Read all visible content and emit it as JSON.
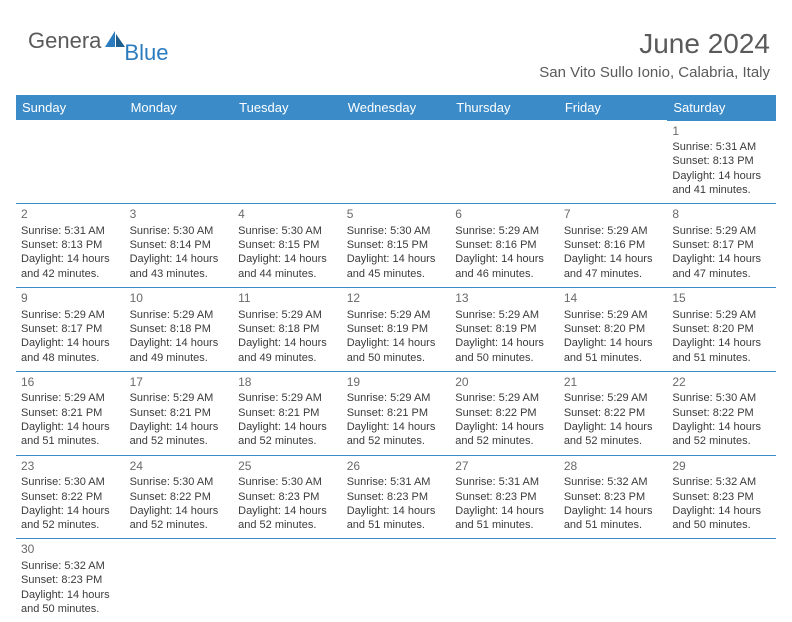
{
  "logo": {
    "general": "Genera",
    "blue": "Blue"
  },
  "title": "June 2024",
  "location": "San Vito Sullo Ionio, Calabria, Italy",
  "colors": {
    "header_bg": "#3b8bc9",
    "header_fg": "#ffffff",
    "cell_border": "#3b8bc9",
    "text": "#3b3b3b",
    "muted": "#5a5a5a",
    "logo_blue": "#2b7bbf"
  },
  "weekdays": [
    "Sunday",
    "Monday",
    "Tuesday",
    "Wednesday",
    "Thursday",
    "Friday",
    "Saturday"
  ],
  "weeks": [
    [
      null,
      null,
      null,
      null,
      null,
      null,
      {
        "n": "1",
        "sr": "Sunrise: 5:31 AM",
        "ss": "Sunset: 8:13 PM",
        "d1": "Daylight: 14 hours",
        "d2": "and 41 minutes."
      }
    ],
    [
      {
        "n": "2",
        "sr": "Sunrise: 5:31 AM",
        "ss": "Sunset: 8:13 PM",
        "d1": "Daylight: 14 hours",
        "d2": "and 42 minutes."
      },
      {
        "n": "3",
        "sr": "Sunrise: 5:30 AM",
        "ss": "Sunset: 8:14 PM",
        "d1": "Daylight: 14 hours",
        "d2": "and 43 minutes."
      },
      {
        "n": "4",
        "sr": "Sunrise: 5:30 AM",
        "ss": "Sunset: 8:15 PM",
        "d1": "Daylight: 14 hours",
        "d2": "and 44 minutes."
      },
      {
        "n": "5",
        "sr": "Sunrise: 5:30 AM",
        "ss": "Sunset: 8:15 PM",
        "d1": "Daylight: 14 hours",
        "d2": "and 45 minutes."
      },
      {
        "n": "6",
        "sr": "Sunrise: 5:29 AM",
        "ss": "Sunset: 8:16 PM",
        "d1": "Daylight: 14 hours",
        "d2": "and 46 minutes."
      },
      {
        "n": "7",
        "sr": "Sunrise: 5:29 AM",
        "ss": "Sunset: 8:16 PM",
        "d1": "Daylight: 14 hours",
        "d2": "and 47 minutes."
      },
      {
        "n": "8",
        "sr": "Sunrise: 5:29 AM",
        "ss": "Sunset: 8:17 PM",
        "d1": "Daylight: 14 hours",
        "d2": "and 47 minutes."
      }
    ],
    [
      {
        "n": "9",
        "sr": "Sunrise: 5:29 AM",
        "ss": "Sunset: 8:17 PM",
        "d1": "Daylight: 14 hours",
        "d2": "and 48 minutes."
      },
      {
        "n": "10",
        "sr": "Sunrise: 5:29 AM",
        "ss": "Sunset: 8:18 PM",
        "d1": "Daylight: 14 hours",
        "d2": "and 49 minutes."
      },
      {
        "n": "11",
        "sr": "Sunrise: 5:29 AM",
        "ss": "Sunset: 8:18 PM",
        "d1": "Daylight: 14 hours",
        "d2": "and 49 minutes."
      },
      {
        "n": "12",
        "sr": "Sunrise: 5:29 AM",
        "ss": "Sunset: 8:19 PM",
        "d1": "Daylight: 14 hours",
        "d2": "and 50 minutes."
      },
      {
        "n": "13",
        "sr": "Sunrise: 5:29 AM",
        "ss": "Sunset: 8:19 PM",
        "d1": "Daylight: 14 hours",
        "d2": "and 50 minutes."
      },
      {
        "n": "14",
        "sr": "Sunrise: 5:29 AM",
        "ss": "Sunset: 8:20 PM",
        "d1": "Daylight: 14 hours",
        "d2": "and 51 minutes."
      },
      {
        "n": "15",
        "sr": "Sunrise: 5:29 AM",
        "ss": "Sunset: 8:20 PM",
        "d1": "Daylight: 14 hours",
        "d2": "and 51 minutes."
      }
    ],
    [
      {
        "n": "16",
        "sr": "Sunrise: 5:29 AM",
        "ss": "Sunset: 8:21 PM",
        "d1": "Daylight: 14 hours",
        "d2": "and 51 minutes."
      },
      {
        "n": "17",
        "sr": "Sunrise: 5:29 AM",
        "ss": "Sunset: 8:21 PM",
        "d1": "Daylight: 14 hours",
        "d2": "and 52 minutes."
      },
      {
        "n": "18",
        "sr": "Sunrise: 5:29 AM",
        "ss": "Sunset: 8:21 PM",
        "d1": "Daylight: 14 hours",
        "d2": "and 52 minutes."
      },
      {
        "n": "19",
        "sr": "Sunrise: 5:29 AM",
        "ss": "Sunset: 8:21 PM",
        "d1": "Daylight: 14 hours",
        "d2": "and 52 minutes."
      },
      {
        "n": "20",
        "sr": "Sunrise: 5:29 AM",
        "ss": "Sunset: 8:22 PM",
        "d1": "Daylight: 14 hours",
        "d2": "and 52 minutes."
      },
      {
        "n": "21",
        "sr": "Sunrise: 5:29 AM",
        "ss": "Sunset: 8:22 PM",
        "d1": "Daylight: 14 hours",
        "d2": "and 52 minutes."
      },
      {
        "n": "22",
        "sr": "Sunrise: 5:30 AM",
        "ss": "Sunset: 8:22 PM",
        "d1": "Daylight: 14 hours",
        "d2": "and 52 minutes."
      }
    ],
    [
      {
        "n": "23",
        "sr": "Sunrise: 5:30 AM",
        "ss": "Sunset: 8:22 PM",
        "d1": "Daylight: 14 hours",
        "d2": "and 52 minutes."
      },
      {
        "n": "24",
        "sr": "Sunrise: 5:30 AM",
        "ss": "Sunset: 8:22 PM",
        "d1": "Daylight: 14 hours",
        "d2": "and 52 minutes."
      },
      {
        "n": "25",
        "sr": "Sunrise: 5:30 AM",
        "ss": "Sunset: 8:23 PM",
        "d1": "Daylight: 14 hours",
        "d2": "and 52 minutes."
      },
      {
        "n": "26",
        "sr": "Sunrise: 5:31 AM",
        "ss": "Sunset: 8:23 PM",
        "d1": "Daylight: 14 hours",
        "d2": "and 51 minutes."
      },
      {
        "n": "27",
        "sr": "Sunrise: 5:31 AM",
        "ss": "Sunset: 8:23 PM",
        "d1": "Daylight: 14 hours",
        "d2": "and 51 minutes."
      },
      {
        "n": "28",
        "sr": "Sunrise: 5:32 AM",
        "ss": "Sunset: 8:23 PM",
        "d1": "Daylight: 14 hours",
        "d2": "and 51 minutes."
      },
      {
        "n": "29",
        "sr": "Sunrise: 5:32 AM",
        "ss": "Sunset: 8:23 PM",
        "d1": "Daylight: 14 hours",
        "d2": "and 50 minutes."
      }
    ],
    [
      {
        "n": "30",
        "sr": "Sunrise: 5:32 AM",
        "ss": "Sunset: 8:23 PM",
        "d1": "Daylight: 14 hours",
        "d2": "and 50 minutes."
      },
      null,
      null,
      null,
      null,
      null,
      null
    ]
  ]
}
